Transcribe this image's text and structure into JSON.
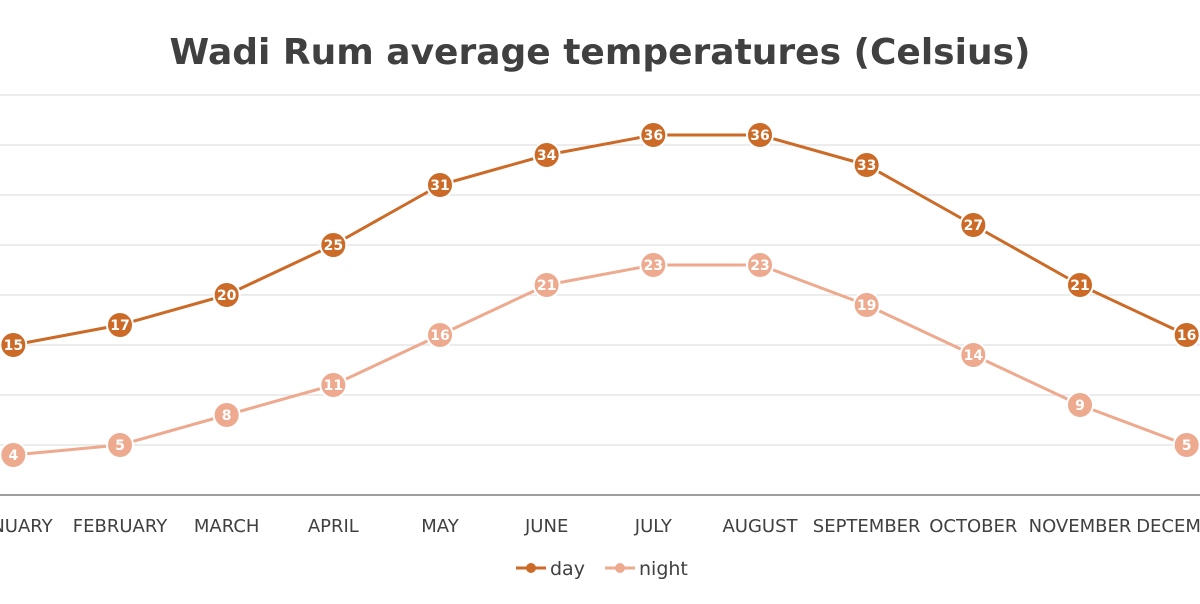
{
  "chart_data": {
    "type": "line",
    "title": "Wadi Rum average temperatures (Celsius)",
    "xlabel": "",
    "ylabel": "",
    "categories": [
      "JANUARY",
      "FEBRUARY",
      "MARCH",
      "APRIL",
      "MAY",
      "JUNE",
      "JULY",
      "AUGUST",
      "SEPTEMBER",
      "OCTOBER",
      "NOVEMBER",
      "DECEMBER"
    ],
    "series": [
      {
        "name": "day",
        "color": "#CC6A27",
        "values": [
          15,
          17,
          20,
          25,
          31,
          34,
          36,
          36,
          33,
          27,
          21,
          16
        ]
      },
      {
        "name": "night",
        "color": "#EDAA8F",
        "values": [
          4,
          5,
          8,
          11,
          16,
          21,
          23,
          23,
          19,
          14,
          9,
          5
        ]
      }
    ],
    "data_labels": true,
    "ylim": [
      0,
      40
    ],
    "grid": true,
    "legend_position": "bottom-center"
  }
}
